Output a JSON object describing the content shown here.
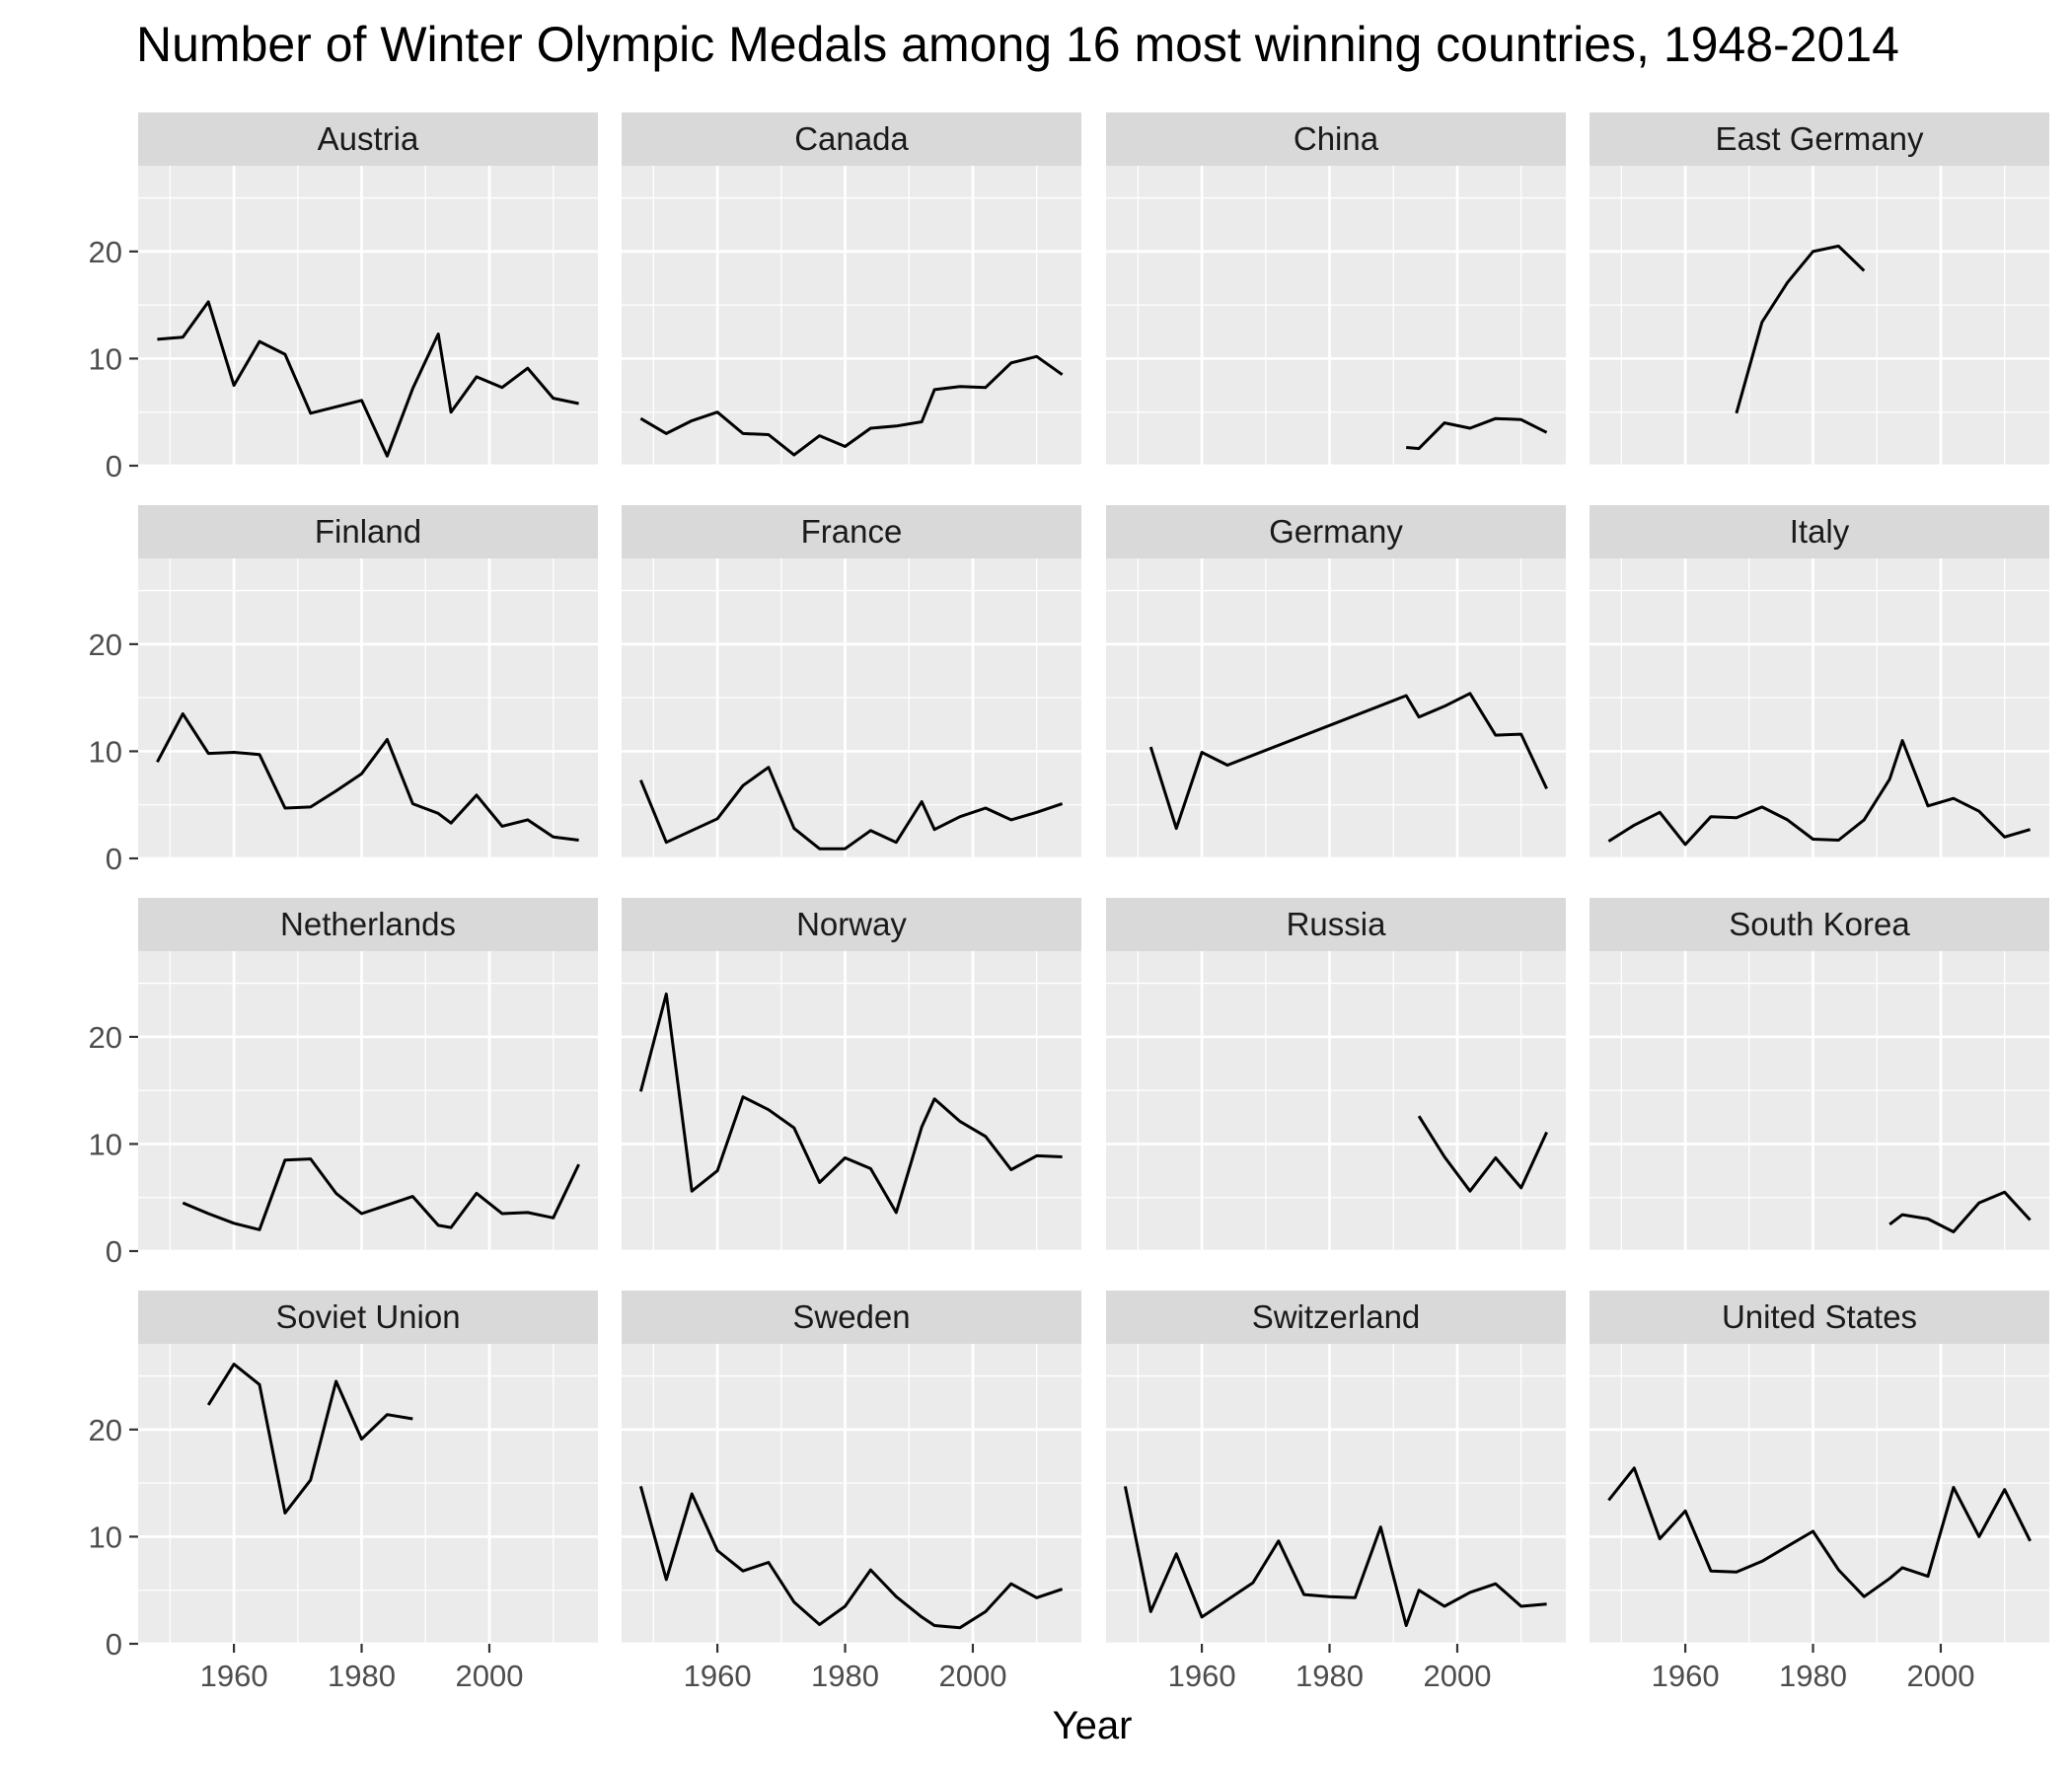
{
  "chart_data": {
    "type": "line",
    "title": "Number of Winter Olympic Medals among 16 most winning countries, 1948-2014",
    "xlabel": "Year",
    "ylabel": "",
    "xlim": [
      1945,
      2017
    ],
    "ylim": [
      0,
      28
    ],
    "x_ticks": [
      1960,
      1980,
      2000
    ],
    "y_ticks": [
      0,
      10,
      20
    ],
    "grid": true,
    "layout": "facet_wrap 4 x 4",
    "panels": [
      {
        "name": "Austria",
        "x": [
          1948,
          1952,
          1956,
          1960,
          1964,
          1968,
          1972,
          1976,
          1980,
          1984,
          1988,
          1992,
          1994,
          1998,
          2002,
          2006,
          2010,
          2014
        ],
        "y": [
          11.8,
          12,
          15.3,
          7.5,
          11.6,
          10.4,
          4.9,
          5.5,
          6.1,
          0.9,
          7.2,
          12.3,
          5,
          8.3,
          7.3,
          9.1,
          6.3,
          5.8
        ]
      },
      {
        "name": "Canada",
        "x": [
          1948,
          1952,
          1956,
          1960,
          1964,
          1968,
          1972,
          1976,
          1980,
          1984,
          1988,
          1992,
          1994,
          1998,
          2002,
          2006,
          2010,
          2014
        ],
        "y": [
          4.4,
          3,
          4.2,
          5,
          3,
          2.9,
          1,
          2.8,
          1.8,
          3.5,
          3.7,
          4.1,
          7.1,
          7.4,
          7.3,
          9.6,
          10.2,
          8.5
        ]
      },
      {
        "name": "China",
        "x": [
          1992,
          1994,
          1998,
          2002,
          2006,
          2010,
          2014
        ],
        "y": [
          1.7,
          1.6,
          4,
          3.5,
          4.4,
          4.3,
          3.1
        ]
      },
      {
        "name": "East Germany",
        "x": [
          1968,
          1972,
          1976,
          1980,
          1984,
          1988
        ],
        "y": [
          4.9,
          13.4,
          17.1,
          20,
          20.5,
          18.2
        ]
      },
      {
        "name": "Finland",
        "x": [
          1948,
          1952,
          1956,
          1960,
          1964,
          1968,
          1972,
          1976,
          1980,
          1984,
          1988,
          1992,
          1994,
          1998,
          2002,
          2006,
          2010,
          2014
        ],
        "y": [
          9,
          13.5,
          9.8,
          9.9,
          9.7,
          4.7,
          4.8,
          6.3,
          7.9,
          11.1,
          5.1,
          4.2,
          3.3,
          5.9,
          3,
          3.6,
          2,
          1.7
        ]
      },
      {
        "name": "France",
        "x": [
          1948,
          1952,
          1960,
          1964,
          1968,
          1972,
          1976,
          1980,
          1984,
          1988,
          1992,
          1994,
          1998,
          2002,
          2006,
          2010,
          2014
        ],
        "y": [
          7.3,
          1.5,
          3.7,
          6.8,
          8.5,
          2.8,
          0.9,
          0.9,
          2.6,
          1.5,
          5.3,
          2.7,
          3.9,
          4.7,
          3.6,
          4.3,
          5.1
        ]
      },
      {
        "name": "Germany",
        "x": [
          1952,
          1956,
          1960,
          1964,
          1992,
          1994,
          1998,
          2002,
          2006,
          2010,
          2014
        ],
        "y": [
          10.4,
          2.8,
          9.9,
          8.7,
          15.2,
          13.2,
          14.2,
          15.4,
          11.5,
          11.6,
          6.5
        ]
      },
      {
        "name": "Italy",
        "x": [
          1948,
          1952,
          1956,
          1960,
          1964,
          1968,
          1972,
          1976,
          1980,
          1984,
          1988,
          1992,
          1994,
          1998,
          2002,
          2006,
          2010,
          2014
        ],
        "y": [
          1.6,
          3.1,
          4.3,
          1.3,
          3.9,
          3.8,
          4.8,
          3.6,
          1.8,
          1.7,
          3.6,
          7.4,
          11,
          4.9,
          5.6,
          4.4,
          2,
          2.7
        ]
      },
      {
        "name": "Netherlands",
        "x": [
          1952,
          1956,
          1960,
          1964,
          1968,
          1972,
          1976,
          1980,
          1984,
          1988,
          1992,
          1994,
          1998,
          2002,
          2006,
          2010,
          2014
        ],
        "y": [
          4.5,
          3.5,
          2.6,
          2,
          8.5,
          8.6,
          5.4,
          3.5,
          4.3,
          5.1,
          2.4,
          2.2,
          5.4,
          3.5,
          3.6,
          3.1,
          8.1
        ]
      },
      {
        "name": "Norway",
        "x": [
          1948,
          1952,
          1956,
          1960,
          1964,
          1968,
          1972,
          1976,
          1980,
          1984,
          1988,
          1992,
          1994,
          1998,
          2002,
          2006,
          2010,
          2014
        ],
        "y": [
          14.9,
          24,
          5.6,
          7.5,
          14.4,
          13.2,
          11.5,
          6.4,
          8.7,
          7.7,
          3.6,
          11.6,
          14.2,
          12.1,
          10.7,
          7.6,
          8.9,
          8.8
        ]
      },
      {
        "name": "Russia",
        "x": [
          1994,
          1998,
          2002,
          2006,
          2010,
          2014
        ],
        "y": [
          12.6,
          8.8,
          5.6,
          8.7,
          5.9,
          11.1
        ]
      },
      {
        "name": "South Korea",
        "x": [
          1992,
          1994,
          1998,
          2002,
          2006,
          2010,
          2014
        ],
        "y": [
          2.5,
          3.4,
          3,
          1.8,
          4.5,
          5.5,
          2.9
        ]
      },
      {
        "name": "Soviet Union",
        "x": [
          1956,
          1960,
          1964,
          1968,
          1972,
          1976,
          1980,
          1984,
          1988
        ],
        "y": [
          22.3,
          26.1,
          24.2,
          12.2,
          15.3,
          24.5,
          19.1,
          21.4,
          21
        ]
      },
      {
        "name": "Sweden",
        "x": [
          1948,
          1952,
          1956,
          1960,
          1964,
          1968,
          1972,
          1976,
          1980,
          1984,
          1988,
          1992,
          1994,
          1998,
          2002,
          2006,
          2010,
          2014
        ],
        "y": [
          14.7,
          6,
          14,
          8.7,
          6.8,
          7.6,
          3.9,
          1.8,
          3.5,
          6.9,
          4.4,
          2.5,
          1.7,
          1.5,
          3,
          5.6,
          4.3,
          5.1
        ]
      },
      {
        "name": "Switzerland",
        "x": [
          1948,
          1952,
          1956,
          1960,
          1964,
          1968,
          1972,
          1976,
          1980,
          1984,
          1988,
          1992,
          1994,
          1998,
          2002,
          2006,
          2010,
          2014
        ],
        "y": [
          14.7,
          3,
          8.4,
          2.5,
          4.1,
          5.7,
          9.6,
          4.6,
          4.4,
          4.3,
          10.9,
          1.7,
          5,
          3.5,
          4.8,
          5.6,
          3.5,
          3.7
        ]
      },
      {
        "name": "United States",
        "x": [
          1948,
          1952,
          1956,
          1960,
          1964,
          1968,
          1972,
          1976,
          1980,
          1984,
          1988,
          1992,
          1994,
          1998,
          2002,
          2006,
          2010,
          2014
        ],
        "y": [
          13.4,
          16.4,
          9.8,
          12.4,
          6.8,
          6.7,
          7.7,
          9.1,
          10.5,
          6.9,
          4.4,
          6.1,
          7.1,
          6.3,
          14.6,
          10,
          14.4,
          9.6
        ]
      }
    ]
  },
  "colors": {
    "panel_background": "#ebebeb",
    "strip_background": "#d9d9d9",
    "grid_line": "#ffffff",
    "line": "#000000"
  }
}
